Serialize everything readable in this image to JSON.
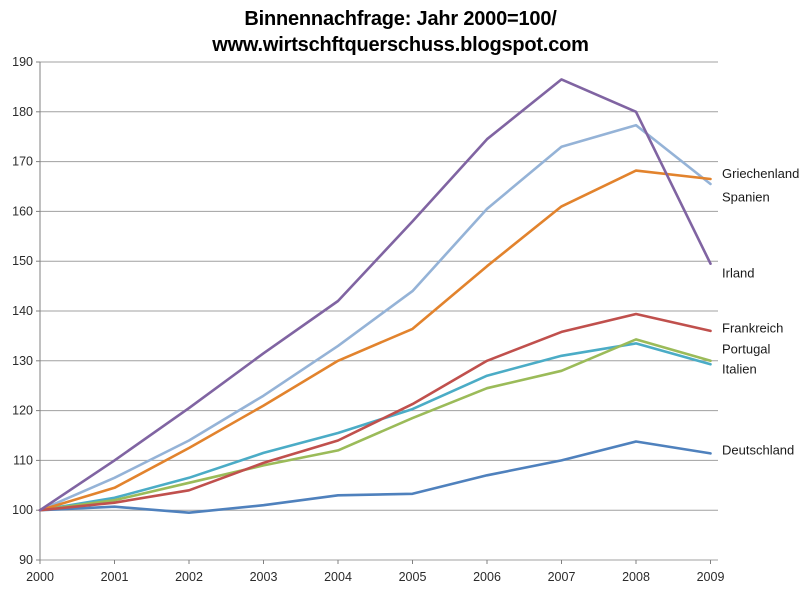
{
  "title": {
    "line1": "Binnennachfrage: Jahr 2000=100/",
    "line2": "www.wirtschftquerschuss.blogspot.com"
  },
  "chart_data": {
    "type": "line",
    "title": "Binnennachfrage: Jahr 2000=100/ www.wirtschftquerschuss.blogspot.com",
    "xlabel": "",
    "ylabel": "",
    "x": [
      2000,
      2001,
      2002,
      2003,
      2004,
      2005,
      2006,
      2007,
      2008,
      2009
    ],
    "ylim": [
      90,
      190
    ],
    "ytick_step": 10,
    "grid": true,
    "legend_position": "right-end-labels",
    "axis_color": "#808080",
    "grid_color": "#a0a0a0",
    "tick_label_color": "#2b2b2b",
    "series_label_color": "#1a1a1a",
    "series": [
      {
        "name": "Griechenland",
        "color": "#95B3D7",
        "label_y": 167.5,
        "values": [
          100,
          106.5,
          114,
          123,
          133,
          144,
          160.5,
          173,
          177.3,
          165.5
        ]
      },
      {
        "name": "Italien",
        "color": "#4BACC6",
        "label_y": 128.3,
        "values": [
          100,
          102.5,
          106.5,
          111.5,
          115.5,
          120.3,
          127,
          131,
          133.5,
          129.3
        ]
      },
      {
        "name": "Deutschland",
        "color": "#4F81BD",
        "label_y": 112.0,
        "values": [
          100,
          100.7,
          99.5,
          101,
          103,
          103.3,
          107,
          110,
          113.8,
          111.4
        ]
      },
      {
        "name": "Portugal",
        "color": "#9BBB59",
        "label_y": 132.3,
        "values": [
          100,
          102,
          105.5,
          109,
          112,
          118.5,
          124.5,
          128,
          134.3,
          130
        ]
      },
      {
        "name": "Spanien",
        "color": "#E2832D",
        "label_y": 162.8,
        "values": [
          100,
          104.5,
          112.5,
          121,
          130,
          136.4,
          149,
          161,
          168.2,
          166.5
        ]
      },
      {
        "name": "Frankreich",
        "color": "#C0504D",
        "label_y": 136.5,
        "values": [
          100,
          101.5,
          104,
          109.5,
          114,
          121.3,
          130,
          135.8,
          139.4,
          136
        ]
      },
      {
        "name": "Irland",
        "color": "#8064A2",
        "label_y": 147.5,
        "values": [
          100,
          110,
          120.5,
          131.5,
          142,
          158,
          174.5,
          186.5,
          180,
          149.5
        ]
      }
    ]
  }
}
